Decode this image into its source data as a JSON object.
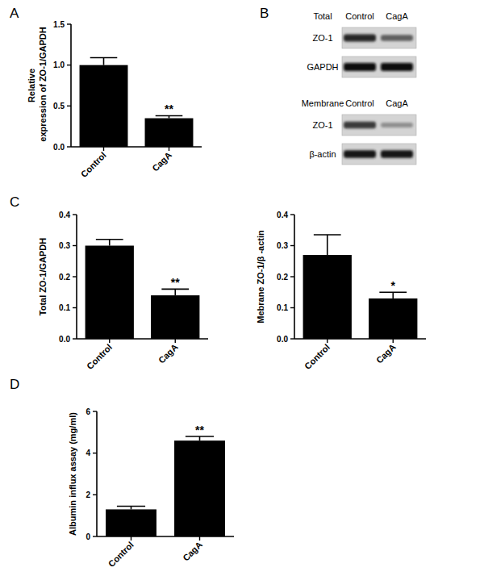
{
  "panels": [
    "A",
    "B",
    "C",
    "D"
  ],
  "chart_data": [
    {
      "type": "bar",
      "y_label": "Relative expression of ZO-1/GAPDH",
      "categories": [
        "Control",
        "CagA"
      ],
      "values": [
        1.0,
        0.35
      ],
      "errors": [
        0.09,
        0.03
      ],
      "annotations": [
        null,
        "**"
      ],
      "color": "#000000",
      "ylim": [
        0,
        1.5
      ],
      "yticks": [
        {
          "value": 0,
          "label": "0.0"
        },
        {
          "value": 0.5,
          "label": "0.5"
        },
        {
          "value": 1,
          "label": "1.0"
        },
        {
          "value": 1.5,
          "label": "1.5"
        }
      ],
      "grid": false
    },
    {
      "type": "bar",
      "y_label": "Total ZO-1/GAPDH",
      "categories": [
        "Control",
        "CagA"
      ],
      "values": [
        0.3,
        0.14
      ],
      "errors": [
        0.02,
        0.02
      ],
      "annotations": [
        null,
        "**"
      ],
      "color": "#000000",
      "ylim": [
        0,
        0.4
      ],
      "yticks": [
        {
          "value": 0,
          "label": "0.0"
        },
        0.1,
        0.2,
        0.3,
        0.4
      ],
      "grid": false
    },
    {
      "type": "bar",
      "y_label": "Mebrane ZO-1/β -actin",
      "categories": [
        "Control",
        "CagA"
      ],
      "values": [
        0.27,
        0.13
      ],
      "errors": [
        0.065,
        0.02
      ],
      "annotations": [
        null,
        "*"
      ],
      "color": "#000000",
      "ylim": [
        0,
        0.4
      ],
      "yticks": [
        {
          "value": 0,
          "label": "0.0"
        },
        0.1,
        0.2,
        0.3,
        0.4
      ],
      "grid": false
    },
    {
      "type": "bar",
      "y_label": "Albumin influx assay (mg/ml)",
      "categories": [
        "Control",
        "CagA"
      ],
      "values": [
        1.3,
        4.6
      ],
      "errors": [
        0.15,
        0.2
      ],
      "annotations": [
        null,
        "**"
      ],
      "color": "#000000",
      "ylim": [
        0,
        6
      ],
      "yticks": [
        0,
        2,
        4,
        6
      ],
      "grid": false
    }
  ],
  "blot": {
    "sections": [
      {
        "title": "Total",
        "columns": [
          "Control",
          "CagA"
        ],
        "rows": [
          {
            "label": "ZO-1",
            "band_intensity": [
              0.85,
              0.55
            ]
          },
          {
            "label": "GAPDH",
            "band_intensity": [
              1,
              1
            ]
          }
        ]
      },
      {
        "title": "Membrane",
        "columns": [
          "Control",
          "CagA"
        ],
        "rows": [
          {
            "label": "ZO-1",
            "band_intensity": [
              0.75,
              0.3
            ]
          },
          {
            "label": "β-actin",
            "band_intensity": [
              0.95,
              0.95
            ]
          }
        ]
      }
    ]
  }
}
